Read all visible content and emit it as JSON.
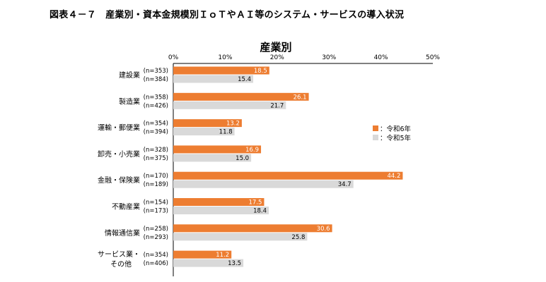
{
  "figure_title": "図表４－７　産業別・資本金規模別ＩｏＴやＡＩ等のシステム・サービスの導入状況",
  "colors": {
    "current": "#ED7D31",
    "previous": "#D9D9D9",
    "axis": "#000000"
  },
  "chart_data": {
    "type": "bar",
    "orientation": "horizontal",
    "title": "産業別",
    "xlim": [
      0,
      50
    ],
    "xticks": [
      0,
      10,
      20,
      30,
      40,
      50
    ],
    "xtick_labels": [
      "0%",
      "10%",
      "20%",
      "30%",
      "40%",
      "50%"
    ],
    "legend": {
      "position": "right",
      "entries": [
        "：令和6年",
        "：令和5年"
      ]
    },
    "series": [
      {
        "name": "令和6年",
        "key": "r6"
      },
      {
        "name": "令和5年",
        "key": "r5"
      }
    ],
    "categories": [
      {
        "label": [
          "建設業"
        ],
        "r6_n": "(n=353)",
        "r5_n": "(n=384)",
        "r6": 18.5,
        "r5": 15.4
      },
      {
        "label": [
          "製造業"
        ],
        "r6_n": "(n=358)",
        "r5_n": "(n=426)",
        "r6": 26.1,
        "r5": 21.7
      },
      {
        "label": [
          "運輸・郵便業"
        ],
        "r6_n": "(n=354)",
        "r5_n": "(n=394)",
        "r6": 13.2,
        "r5": 11.8
      },
      {
        "label": [
          "卸売・小売業"
        ],
        "r6_n": "(n=328)",
        "r5_n": "(n=375)",
        "r6": 16.9,
        "r5": 15.0
      },
      {
        "label": [
          "金融・保険業"
        ],
        "r6_n": "(n=170)",
        "r5_n": "(n=189)",
        "r6": 44.2,
        "r5": 34.7
      },
      {
        "label": [
          "不動産業"
        ],
        "r6_n": "(n=154)",
        "r5_n": "(n=173)",
        "r6": 17.5,
        "r5": 18.4
      },
      {
        "label": [
          "情報通信業"
        ],
        "r6_n": "(n=258)",
        "r5_n": "(n=293)",
        "r6": 30.6,
        "r5": 25.8
      },
      {
        "label": [
          "サービス業・",
          "その他"
        ],
        "r6_n": "(n=354)",
        "r5_n": "(n=406)",
        "r6": 11.2,
        "r5": 13.5
      }
    ]
  }
}
